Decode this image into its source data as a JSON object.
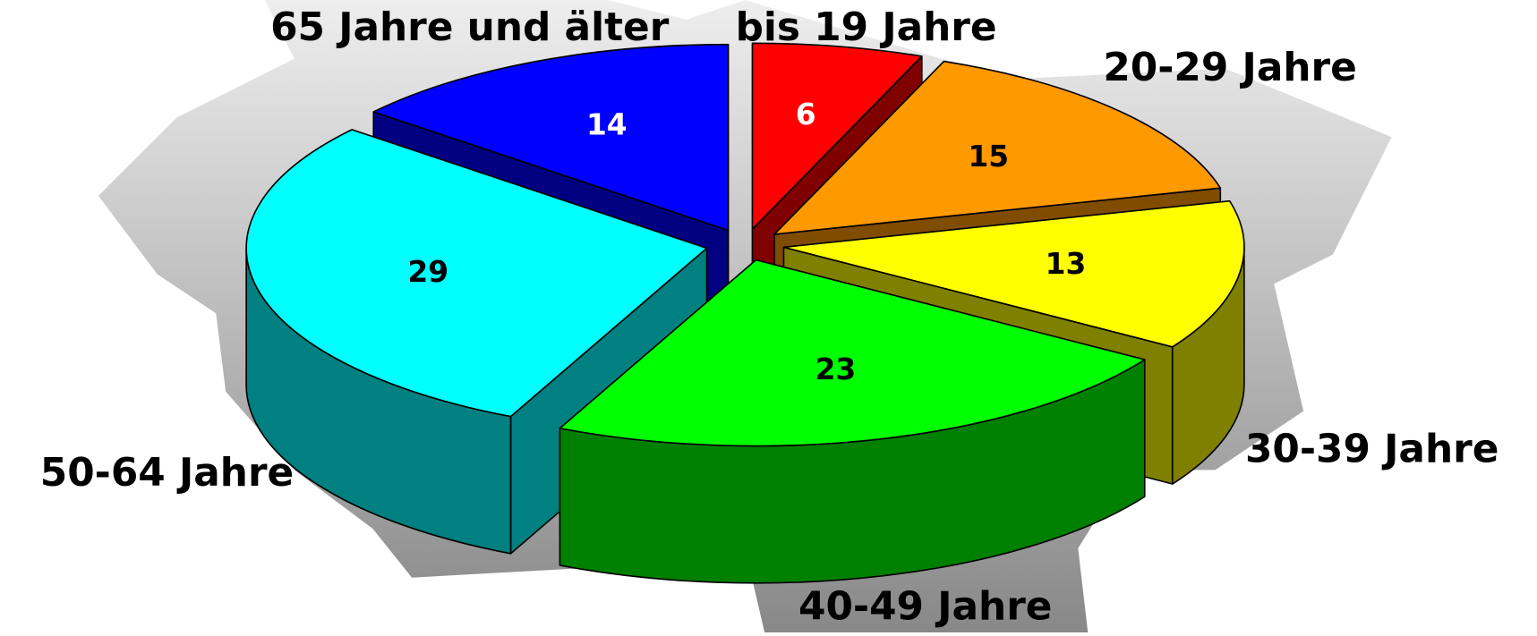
{
  "chart_data": {
    "type": "pie3d",
    "categories": [
      "bis 19 Jahre",
      "20-29 Jahre",
      "30-39 Jahre",
      "40-49 Jahre",
      "50-64 Jahre",
      "65 Jahre und älter"
    ],
    "values": [
      6,
      15,
      13,
      23,
      29,
      14
    ],
    "colors": [
      "#ff0000",
      "#ff9900",
      "#ffff00",
      "#00ff00",
      "#00ffff",
      "#0000ff"
    ],
    "side_colors": [
      "#800000",
      "#804c00",
      "#808000",
      "#008000",
      "#008080",
      "#000080"
    ]
  }
}
